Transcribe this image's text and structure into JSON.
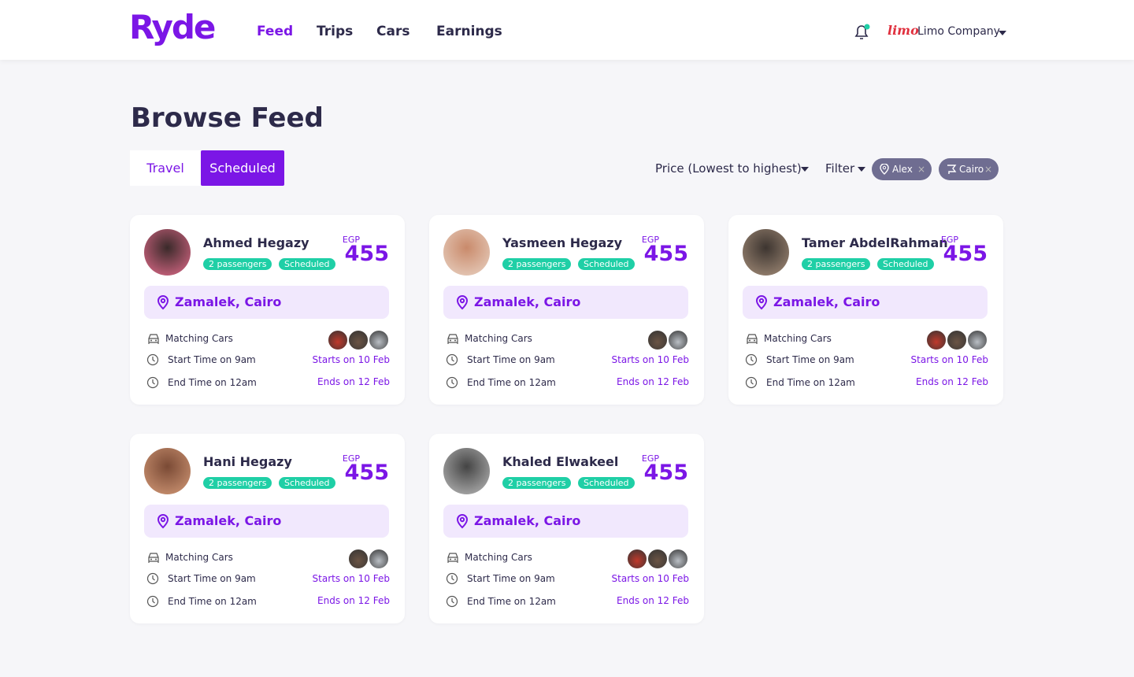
{
  "header": {
    "logo": "Ryde",
    "nav": [
      "Feed",
      "Trips",
      "Cars",
      "Earnings"
    ],
    "company_logo": "limo",
    "company": "Limo Company"
  },
  "page": {
    "title": "Browse Feed",
    "tabs": [
      "Travel",
      "Scheduled"
    ],
    "sort": "Price (Lowest to highest)",
    "filter": "Filter",
    "chips": [
      "Alex",
      "Cairo"
    ]
  },
  "cards": [
    {
      "name": "Ahmed Hegazy",
      "passengers": "2 passengers",
      "status": "Scheduled",
      "currency": "EGP",
      "price": 455,
      "location": "Zamalek, Cairo",
      "matching": "Matching Cars",
      "cars": [
        "#c0392b",
        "#6b5444",
        "#b9bec4"
      ],
      "start": "Start Time on 9am",
      "starts": "Starts on 10 Feb",
      "end": "End Time on 12am",
      "ends": "Ends on 12 Feb"
    },
    {
      "name": "Yasmeen Hegazy",
      "passengers": "2 passengers",
      "status": "Scheduled",
      "currency": "EGP",
      "price": 455,
      "location": "Zamalek, Cairo",
      "matching": "Matching Cars",
      "cars": [
        "#6b5444",
        "#b9bec4"
      ],
      "start": "Start Time on 9am",
      "starts": "Starts on 10 Feb",
      "end": "End Time on 12am",
      "ends": "Ends on 12 Feb"
    },
    {
      "name": "Tamer AbdelRahman",
      "passengers": "2 passengers",
      "status": "Scheduled",
      "currency": "EGP",
      "price": 455,
      "location": "Zamalek, Cairo",
      "matching": "Matching Cars",
      "cars": [
        "#c0392b",
        "#6b5444",
        "#b9bec4"
      ],
      "start": "Start Time on 9am",
      "starts": "Starts on 10 Feb",
      "end": "End Time on 12am",
      "ends": "Ends on 12 Feb"
    },
    {
      "name": "Hani Hegazy",
      "passengers": "2 passengers",
      "status": "Scheduled",
      "currency": "EGP",
      "price": 455,
      "location": "Zamalek, Cairo",
      "matching": "Matching Cars",
      "cars": [
        "#6b5444",
        "#b9bec4"
      ],
      "start": "Start Time on 9am",
      "starts": "Starts on 10 Feb",
      "end": "End Time on 12am",
      "ends": "Ends on 12 Feb"
    },
    {
      "name": "Khaled Elwakeel",
      "passengers": "2 passengers",
      "status": "Scheduled",
      "currency": "EGP",
      "price": 455,
      "location": "Zamalek, Cairo",
      "matching": "Matching Cars",
      "cars": [
        "#c0392b",
        "#6b5444",
        "#b9bec4"
      ],
      "start": "Start Time on 9am",
      "starts": "Starts on 10 Feb",
      "end": "End Time on 12am",
      "ends": "Ends on 12 Feb"
    }
  ]
}
